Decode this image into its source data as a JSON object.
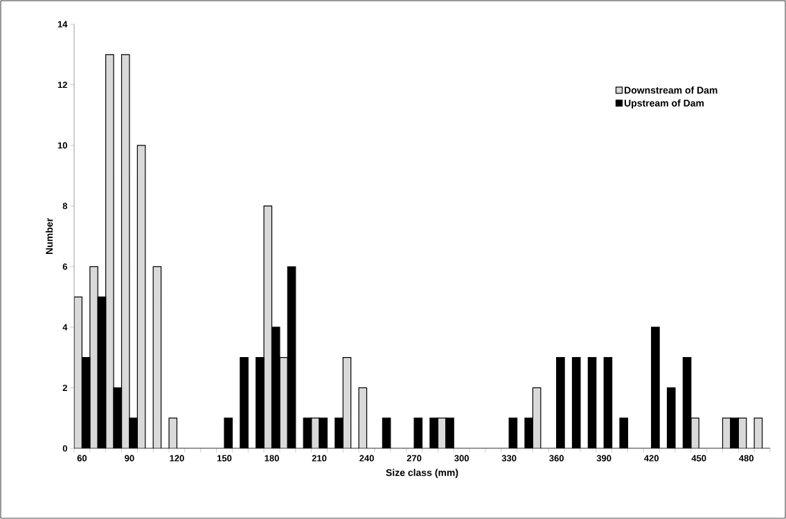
{
  "chart_data": {
    "type": "bar",
    "xlabel": "Size class (mm)",
    "ylabel": "Number",
    "categories": [
      "60",
      null,
      null,
      "90",
      null,
      null,
      "120",
      null,
      null,
      "150",
      null,
      null,
      "180",
      null,
      null,
      "210",
      null,
      null,
      "240",
      null,
      null,
      "270",
      null,
      null,
      "300",
      null,
      null,
      "330",
      null,
      null,
      "360",
      null,
      null,
      "390",
      null,
      null,
      "420",
      null,
      null,
      "450",
      null,
      null,
      "480",
      null
    ],
    "ylim": [
      0,
      14
    ],
    "yticks": [
      0,
      2,
      4,
      6,
      8,
      10,
      12,
      14
    ],
    "legend": "top right",
    "series": [
      {
        "name": "Downstream of Dam",
        "color": "#d9d9d9",
        "values": [
          5,
          6,
          13,
          13,
          10,
          6,
          1,
          0,
          0,
          0,
          0,
          0,
          8,
          3,
          0,
          1,
          0,
          3,
          2,
          0,
          0,
          0,
          0,
          1,
          0,
          0,
          0,
          0,
          0,
          2,
          0,
          0,
          0,
          0,
          0,
          0,
          0,
          0,
          0,
          1,
          0,
          1,
          1,
          1
        ]
      },
      {
        "name": "Upstream of Dam",
        "color": "#000000",
        "values": [
          3,
          5,
          2,
          1,
          0,
          0,
          0,
          0,
          0,
          1,
          3,
          3,
          4,
          6,
          1,
          1,
          1,
          0,
          0,
          1,
          0,
          1,
          1,
          1,
          0,
          0,
          0,
          1,
          1,
          0,
          3,
          3,
          3,
          3,
          1,
          0,
          4,
          2,
          3,
          0,
          0,
          1,
          0,
          0
        ]
      }
    ]
  }
}
